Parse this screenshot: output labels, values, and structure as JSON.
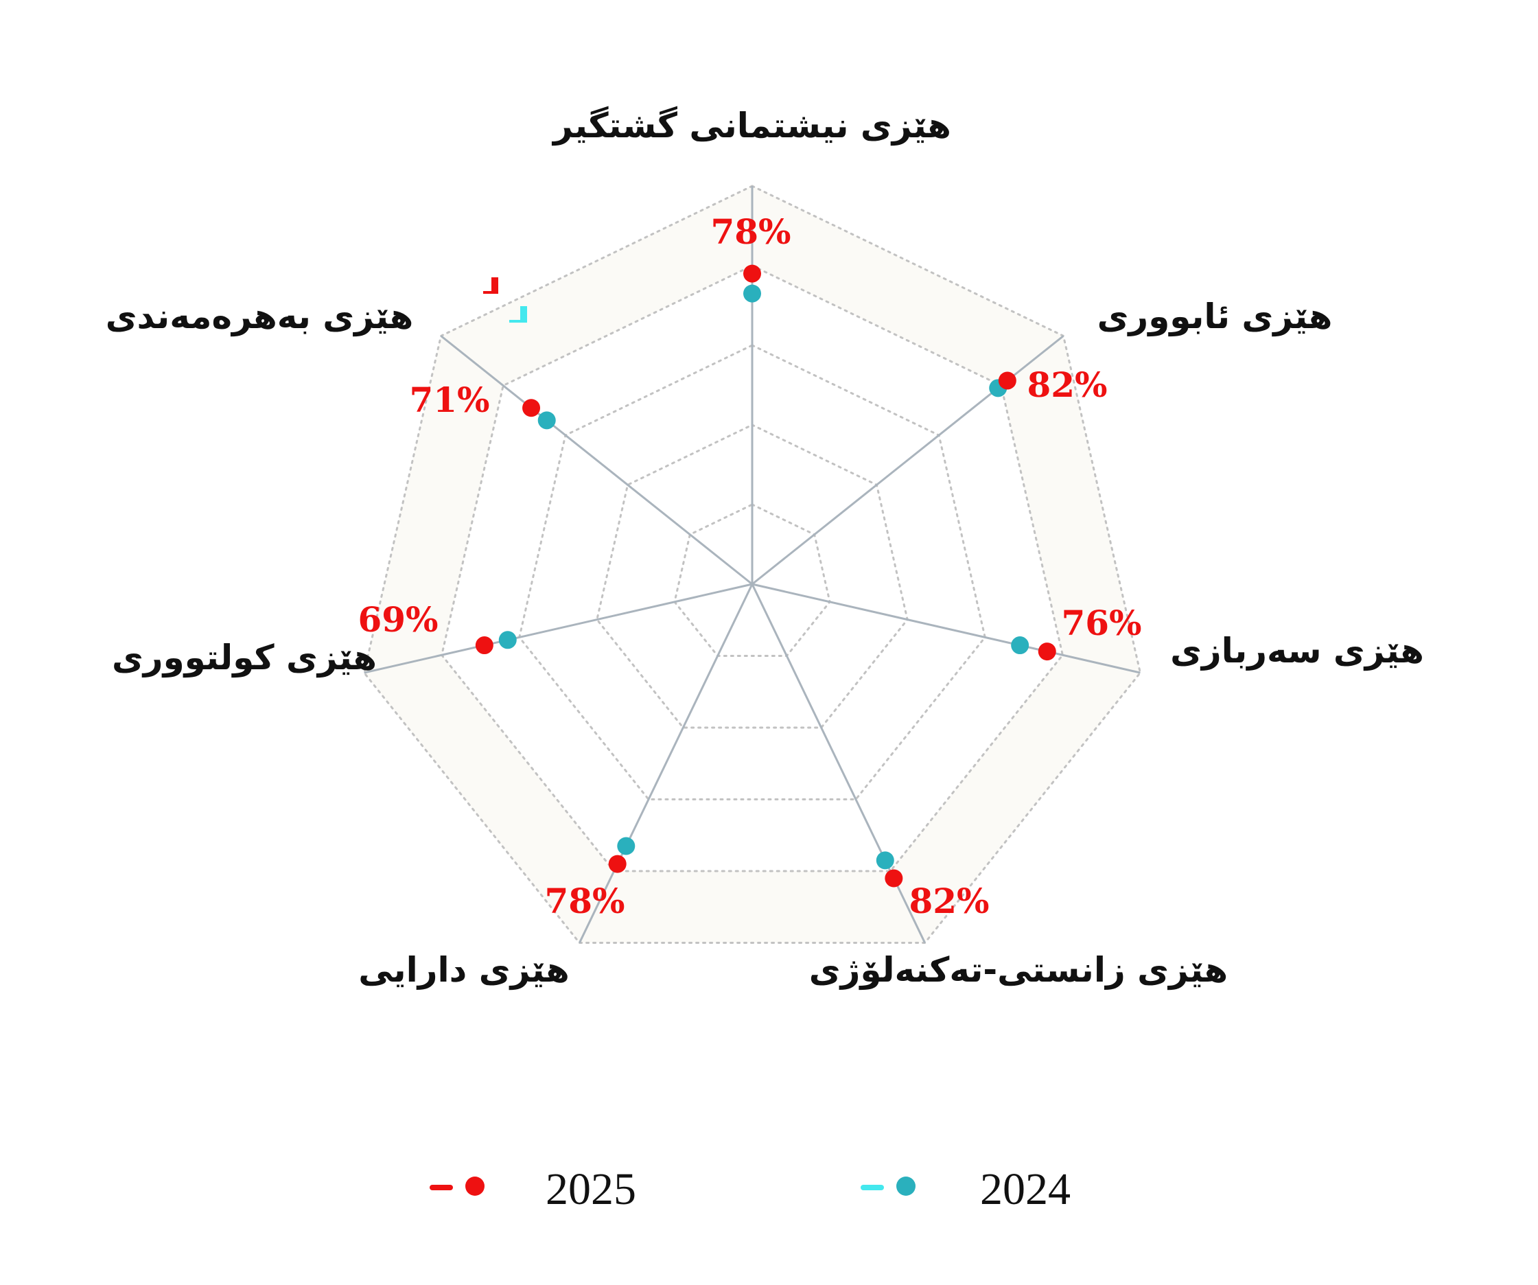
{
  "chart_data": {
    "type": "radar",
    "axes": [
      "هێزی نیشتمانی گشتگیر",
      "هێزی ئابووری",
      "هێزی سەربازی",
      "هێزی زانستی-تەکنەلۆژی",
      "هێزی دارایی",
      "هێزی کولتووری",
      "هێزی بەهرەمەندی"
    ],
    "rlim": [
      0,
      100
    ],
    "grid_levels": [
      20,
      40,
      60,
      80,
      100
    ],
    "series": [
      {
        "name": "2025",
        "color": "#ee1111",
        "values": [
          78,
          82,
          76,
          82,
          78,
          69,
          71
        ],
        "labels": [
          "78%",
          "82%",
          "76%",
          "82%",
          "78%",
          "69%",
          "71%"
        ]
      },
      {
        "name": "2024",
        "color": "#2ab0bd",
        "legend_line_color": "#44e8ee",
        "values": [
          73,
          79,
          69,
          77,
          73,
          63,
          66
        ]
      }
    ],
    "legend_position": "bottom"
  }
}
